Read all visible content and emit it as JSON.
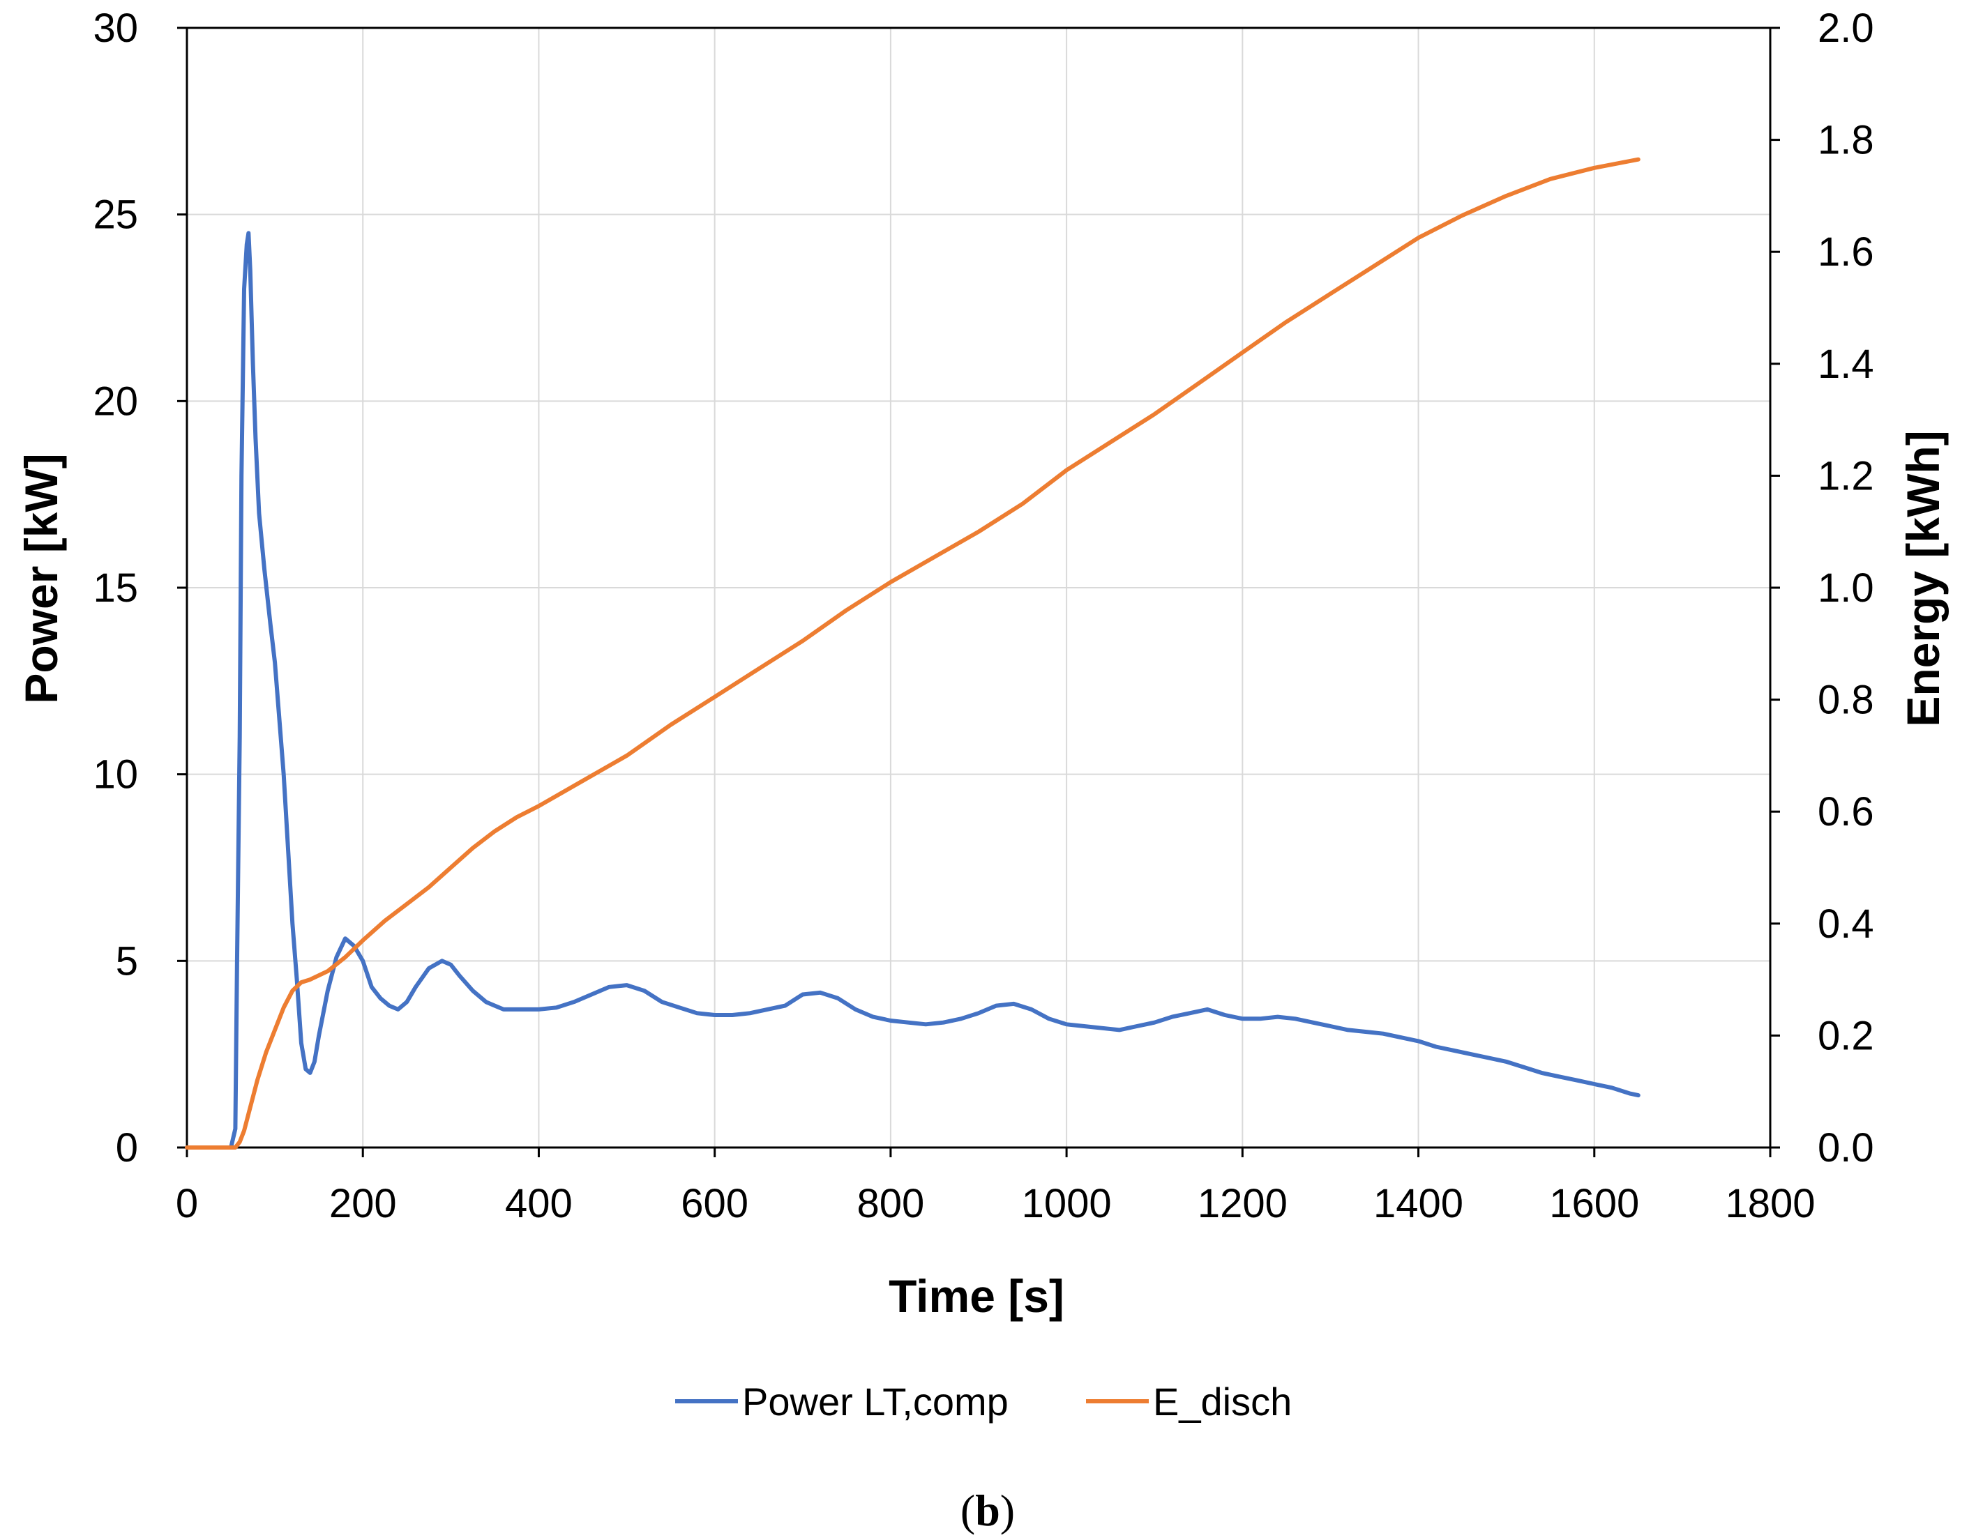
{
  "chart_data": {
    "type": "line",
    "xlabel": "Time [s]",
    "ylabel_left": "Power [kW]",
    "ylabel_right": "Energy [kWh]",
    "xlim": [
      0,
      1800
    ],
    "ylim_left": [
      0,
      30
    ],
    "ylim_right": [
      0,
      2.0
    ],
    "x_ticks": [
      0,
      200,
      400,
      600,
      800,
      1000,
      1200,
      1400,
      1600,
      1800
    ],
    "x_tick_labels": [
      "0",
      "200",
      "400",
      "600",
      "800",
      "1000",
      "1200",
      "1400",
      "1600",
      "1800"
    ],
    "y_left_ticks": [
      0,
      5,
      10,
      15,
      20,
      25,
      30
    ],
    "y_left_tick_labels": [
      "0",
      "5",
      "10",
      "15",
      "20",
      "25",
      "30"
    ],
    "y_right_ticks": [
      0,
      0.2,
      0.4,
      0.6,
      0.8,
      1.0,
      1.2,
      1.4,
      1.6,
      1.8,
      2.0
    ],
    "y_right_tick_labels": [
      "0.0",
      "0.2",
      "0.4",
      "0.6",
      "0.8",
      "1.0",
      "1.2",
      "1.4",
      "1.6",
      "1.8",
      "2.0"
    ],
    "grid": true,
    "legend_position": "bottom",
    "series": [
      {
        "name": "Power LT,comp",
        "axis": "left",
        "color": "#4472C4",
        "x": [
          0,
          50,
          55,
          57,
          60,
          62,
          65,
          68,
          70,
          72,
          75,
          78,
          82,
          88,
          95,
          100,
          110,
          115,
          120,
          125,
          130,
          135,
          140,
          145,
          150,
          160,
          170,
          180,
          190,
          200,
          210,
          220,
          230,
          240,
          250,
          260,
          275,
          290,
          300,
          310,
          325,
          340,
          350,
          360,
          380,
          400,
          420,
          440,
          460,
          480,
          500,
          520,
          540,
          560,
          580,
          600,
          620,
          640,
          660,
          680,
          700,
          720,
          740,
          760,
          780,
          800,
          820,
          840,
          860,
          880,
          900,
          920,
          940,
          960,
          980,
          1000,
          1020,
          1040,
          1060,
          1080,
          1100,
          1120,
          1140,
          1160,
          1180,
          1200,
          1220,
          1240,
          1260,
          1280,
          1300,
          1320,
          1340,
          1360,
          1380,
          1400,
          1420,
          1440,
          1460,
          1480,
          1500,
          1520,
          1540,
          1560,
          1580,
          1600,
          1620,
          1640,
          1650
        ],
        "y": [
          0,
          0,
          0.5,
          5,
          11,
          18,
          23,
          24.2,
          24.5,
          23.5,
          21,
          19,
          17,
          15.5,
          14,
          13,
          10,
          8,
          6,
          4.5,
          2.8,
          2.1,
          2.0,
          2.3,
          3.0,
          4.2,
          5.1,
          5.6,
          5.4,
          5.0,
          4.3,
          4.0,
          3.8,
          3.7,
          3.9,
          4.3,
          4.8,
          5.0,
          4.9,
          4.6,
          4.2,
          3.9,
          3.8,
          3.7,
          3.7,
          3.7,
          3.75,
          3.9,
          4.1,
          4.3,
          4.35,
          4.2,
          3.9,
          3.75,
          3.6,
          3.55,
          3.55,
          3.6,
          3.7,
          3.8,
          4.1,
          4.15,
          4.0,
          3.7,
          3.5,
          3.4,
          3.35,
          3.3,
          3.35,
          3.45,
          3.6,
          3.8,
          3.85,
          3.7,
          3.45,
          3.3,
          3.25,
          3.2,
          3.15,
          3.25,
          3.35,
          3.5,
          3.6,
          3.7,
          3.55,
          3.45,
          3.45,
          3.5,
          3.45,
          3.35,
          3.25,
          3.15,
          3.1,
          3.05,
          2.95,
          2.85,
          2.7,
          2.6,
          2.5,
          2.4,
          2.3,
          2.15,
          2.0,
          1.9,
          1.8,
          1.7,
          1.6,
          1.45,
          1.4
        ]
      },
      {
        "name": "E_disch",
        "axis": "right",
        "color": "#ED7D31",
        "x": [
          0,
          55,
          60,
          65,
          70,
          75,
          80,
          90,
          100,
          110,
          120,
          130,
          140,
          160,
          180,
          200,
          225,
          250,
          275,
          300,
          325,
          350,
          375,
          400,
          450,
          500,
          550,
          600,
          650,
          700,
          750,
          800,
          850,
          900,
          950,
          1000,
          1050,
          1100,
          1150,
          1200,
          1250,
          1300,
          1350,
          1400,
          1450,
          1500,
          1550,
          1600,
          1650
        ],
        "y": [
          0,
          0,
          0.01,
          0.03,
          0.06,
          0.09,
          0.12,
          0.17,
          0.21,
          0.25,
          0.28,
          0.295,
          0.3,
          0.315,
          0.34,
          0.37,
          0.405,
          0.435,
          0.465,
          0.5,
          0.535,
          0.565,
          0.59,
          0.61,
          0.655,
          0.7,
          0.755,
          0.805,
          0.855,
          0.905,
          0.96,
          1.01,
          1.055,
          1.1,
          1.15,
          1.21,
          1.26,
          1.31,
          1.365,
          1.42,
          1.475,
          1.525,
          1.575,
          1.625,
          1.665,
          1.7,
          1.73,
          1.75,
          1.765
        ]
      }
    ]
  },
  "legend": {
    "items": [
      {
        "label": "Power LT,comp",
        "color": "#4472C4"
      },
      {
        "label": "E_disch",
        "color": "#ED7D31"
      }
    ]
  },
  "caption": {
    "open": "(",
    "letter": "b",
    "close": ")"
  }
}
